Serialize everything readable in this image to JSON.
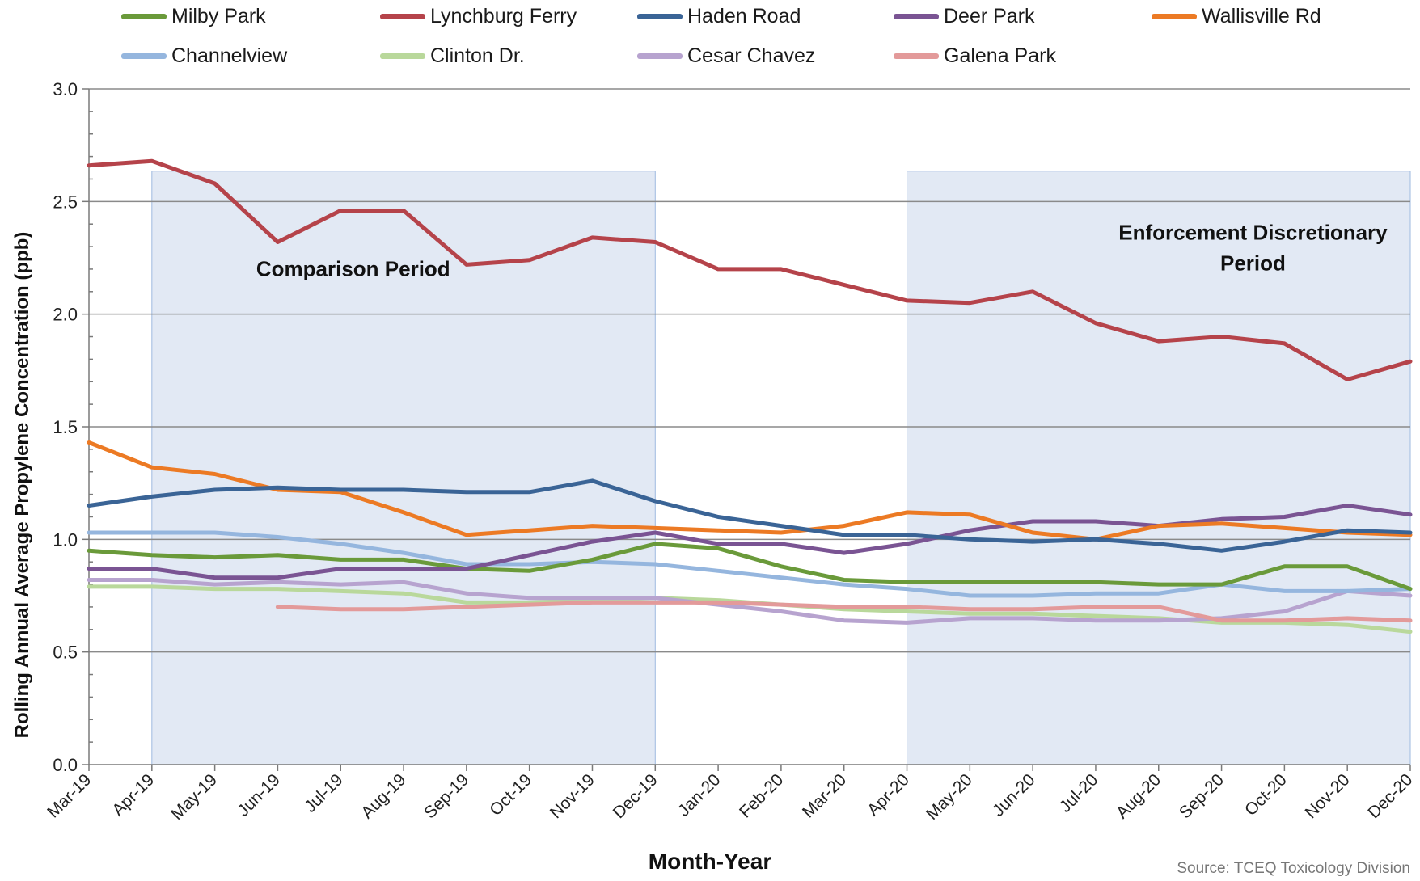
{
  "chart_data": {
    "type": "line",
    "title": "",
    "xlabel": "Month-Year",
    "ylabel": "Rolling Annual Average Propylene Concentration (ppb)",
    "ylim": [
      0,
      3.0
    ],
    "yticks": [
      "0.0",
      "0.5",
      "1.0",
      "1.5",
      "2.0",
      "2.5",
      "3.0"
    ],
    "grid": "horizontal",
    "legend_position": "top",
    "x": [
      "Mar-19",
      "Apr-19",
      "May-19",
      "Jun-19",
      "Jul-19",
      "Aug-19",
      "Sep-19",
      "Oct-19",
      "Nov-19",
      "Dec-19",
      "Jan-20",
      "Feb-20",
      "Mar-20",
      "Apr-20",
      "May-20",
      "Jun-20",
      "Jul-20",
      "Aug-20",
      "Sep-20",
      "Oct-20",
      "Nov-20",
      "Dec-20"
    ],
    "series": [
      {
        "name": "Milby Park",
        "color": "#6a9a3a",
        "values": [
          0.95,
          0.93,
          0.92,
          0.93,
          0.91,
          0.91,
          0.87,
          0.86,
          0.91,
          0.98,
          0.96,
          0.88,
          0.82,
          0.81,
          0.81,
          0.81,
          0.81,
          0.8,
          0.8,
          0.88,
          0.88,
          0.78
        ]
      },
      {
        "name": "Lynchburg Ferry",
        "color": "#b5434a",
        "values": [
          2.66,
          2.68,
          2.58,
          2.32,
          2.46,
          2.46,
          2.22,
          2.24,
          2.34,
          2.32,
          2.2,
          2.2,
          2.13,
          2.06,
          2.05,
          2.1,
          1.96,
          1.88,
          1.9,
          1.87,
          1.71,
          1.79
        ]
      },
      {
        "name": "Haden Road",
        "color": "#3a6496",
        "values": [
          1.15,
          1.19,
          1.22,
          1.23,
          1.22,
          1.22,
          1.21,
          1.21,
          1.26,
          1.17,
          1.1,
          1.06,
          1.02,
          1.02,
          1.0,
          0.99,
          1.0,
          0.98,
          0.95,
          0.99,
          1.04,
          1.03
        ]
      },
      {
        "name": "Deer Park",
        "color": "#7a5493",
        "values": [
          0.87,
          0.87,
          0.83,
          0.83,
          0.87,
          0.87,
          0.87,
          0.93,
          0.99,
          1.03,
          0.98,
          0.98,
          0.94,
          0.98,
          1.04,
          1.08,
          1.08,
          1.06,
          1.09,
          1.1,
          1.15,
          1.11
        ]
      },
      {
        "name": "Wallisville Rd",
        "color": "#ec7a24",
        "values": [
          1.43,
          1.32,
          1.29,
          1.22,
          1.21,
          1.12,
          1.02,
          1.04,
          1.06,
          1.05,
          1.04,
          1.03,
          1.06,
          1.12,
          1.11,
          1.03,
          1.0,
          1.06,
          1.07,
          1.05,
          1.03,
          1.02
        ]
      },
      {
        "name": "Channelview",
        "color": "#95b6de",
        "values": [
          1.03,
          1.03,
          1.03,
          1.01,
          0.98,
          0.94,
          0.89,
          0.89,
          0.9,
          0.89,
          0.86,
          0.83,
          0.8,
          0.78,
          0.75,
          0.75,
          0.76,
          0.76,
          0.8,
          0.77,
          0.77,
          0.78
        ]
      },
      {
        "name": "Clinton Dr.",
        "color": "#b9d89b",
        "values": [
          0.79,
          0.79,
          0.78,
          0.78,
          0.77,
          0.76,
          0.72,
          0.72,
          0.73,
          0.74,
          0.73,
          0.71,
          0.69,
          0.68,
          0.67,
          0.67,
          0.66,
          0.65,
          0.63,
          0.63,
          0.62,
          0.59
        ]
      },
      {
        "name": "Cesar Chavez",
        "color": "#b7a3cf",
        "values": [
          0.82,
          0.82,
          0.8,
          0.81,
          0.8,
          0.81,
          0.76,
          0.74,
          0.74,
          0.74,
          0.71,
          0.68,
          0.64,
          0.63,
          0.65,
          0.65,
          0.64,
          0.64,
          0.65,
          0.68,
          0.77,
          0.75
        ]
      },
      {
        "name": "Galena Park",
        "color": "#e39a9a",
        "values": [
          null,
          null,
          null,
          0.7,
          0.69,
          0.69,
          0.7,
          0.71,
          0.72,
          0.72,
          0.72,
          0.71,
          0.7,
          0.7,
          0.69,
          0.69,
          0.7,
          0.7,
          0.64,
          0.64,
          0.65,
          0.64
        ]
      }
    ],
    "annotations": [
      {
        "label": "Comparison Period",
        "start": "Apr-19",
        "end": "Dec-19"
      },
      {
        "label": "Enforcement Discretionary Period",
        "line1": "Enforcement Discretionary",
        "line2": "Period",
        "start": "Apr-20",
        "end": "Dec-20"
      }
    ],
    "shade_color": "#e2e9f4",
    "shade_border_color": "#9ebadf",
    "grid_color": "#8a8a8a",
    "source": "Source: TCEQ Toxicology Division"
  }
}
